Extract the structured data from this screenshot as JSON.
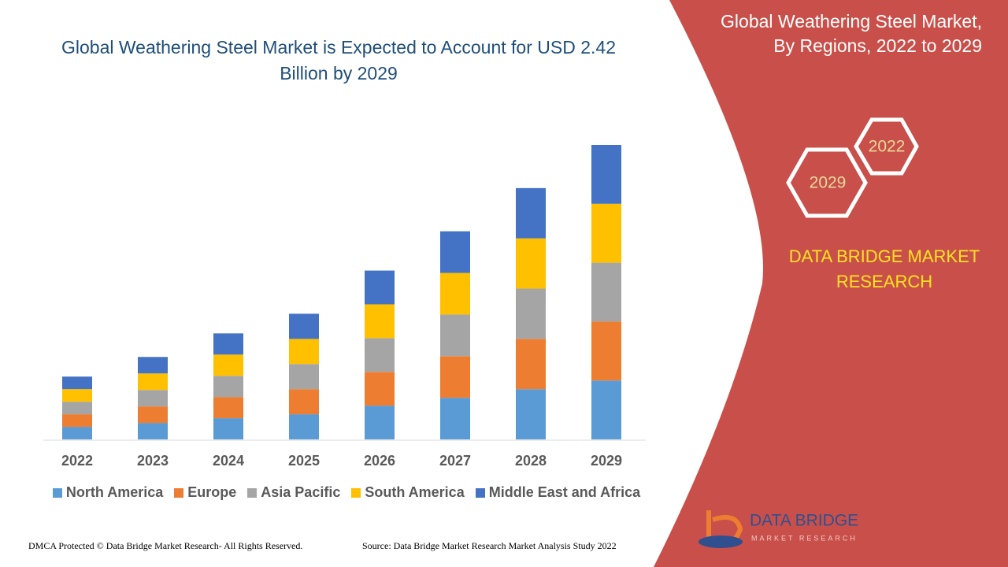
{
  "chart_data": {
    "type": "bar",
    "stacked": true,
    "title": "Global Weathering Steel Market is Expected to Account for USD 2.42 Billion by 2029",
    "categories": [
      "2022",
      "2023",
      "2024",
      "2025",
      "2026",
      "2027",
      "2028",
      "2029"
    ],
    "series": [
      {
        "name": "North America",
        "color": "#5b9bd5",
        "values": [
          16,
          21,
          27,
          32,
          43,
          53,
          64,
          75
        ]
      },
      {
        "name": "Europe",
        "color": "#ed7d31",
        "values": [
          16,
          21,
          27,
          32,
          43,
          53,
          64,
          75
        ]
      },
      {
        "name": "Asia Pacific",
        "color": "#a5a5a5",
        "values": [
          16,
          21,
          27,
          32,
          43,
          53,
          64,
          75
        ]
      },
      {
        "name": "South America",
        "color": "#ffc000",
        "values": [
          16,
          21,
          27,
          32,
          43,
          53,
          64,
          75
        ]
      },
      {
        "name": "Middle East and Africa",
        "color": "#4472c4",
        "values": [
          16,
          21,
          27,
          32,
          43,
          53,
          64,
          75
        ]
      }
    ]
  },
  "side_panel": {
    "title": "Global Weathering Steel Market, By Regions, 2022 to 2029",
    "hex_labels": [
      "2022",
      "2029"
    ],
    "brand": "DATA BRIDGE MARKET RESEARCH"
  },
  "logo": {
    "name": "DATA BRIDGE",
    "tagline": "MARKET RESEARCH"
  },
  "footer": {
    "copyright": "DMCA Protected © Data Bridge Market Research- All Rights Reserved.",
    "source": "Source: Data Bridge Market Research Market Analysis Study 2022"
  }
}
